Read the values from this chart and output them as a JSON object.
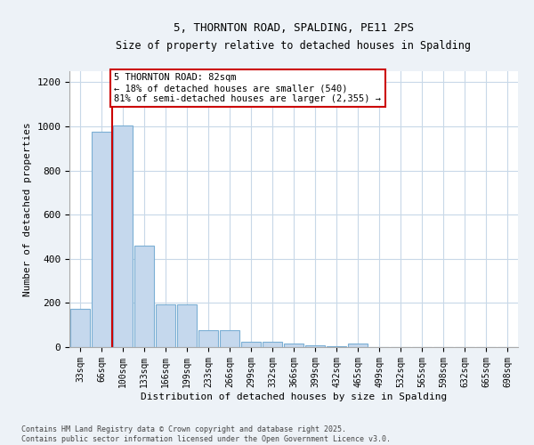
{
  "title1": "5, THORNTON ROAD, SPALDING, PE11 2PS",
  "title2": "Size of property relative to detached houses in Spalding",
  "xlabel": "Distribution of detached houses by size in Spalding",
  "ylabel": "Number of detached properties",
  "categories": [
    "33sqm",
    "66sqm",
    "100sqm",
    "133sqm",
    "166sqm",
    "199sqm",
    "233sqm",
    "266sqm",
    "299sqm",
    "332sqm",
    "366sqm",
    "399sqm",
    "432sqm",
    "465sqm",
    "499sqm",
    "532sqm",
    "565sqm",
    "598sqm",
    "632sqm",
    "665sqm",
    "698sqm"
  ],
  "values": [
    175,
    975,
    1005,
    460,
    195,
    195,
    75,
    75,
    25,
    25,
    15,
    10,
    5,
    15,
    0,
    0,
    0,
    0,
    0,
    0,
    0
  ],
  "bar_color": "#c5d8ed",
  "bar_edgecolor": "#7bafd4",
  "vline_color": "#cc0000",
  "vline_pos": 1.5,
  "ylim": [
    0,
    1250
  ],
  "yticks": [
    0,
    200,
    400,
    600,
    800,
    1000,
    1200
  ],
  "annotation_text": "5 THORNTON ROAD: 82sqm\n← 18% of detached houses are smaller (540)\n81% of semi-detached houses are larger (2,355) →",
  "annotation_box_color": "#cc0000",
  "footer1": "Contains HM Land Registry data © Crown copyright and database right 2025.",
  "footer2": "Contains public sector information licensed under the Open Government Licence v3.0.",
  "background_color": "#edf2f7",
  "plot_bg_color": "#ffffff",
  "grid_color": "#c8d8e8"
}
